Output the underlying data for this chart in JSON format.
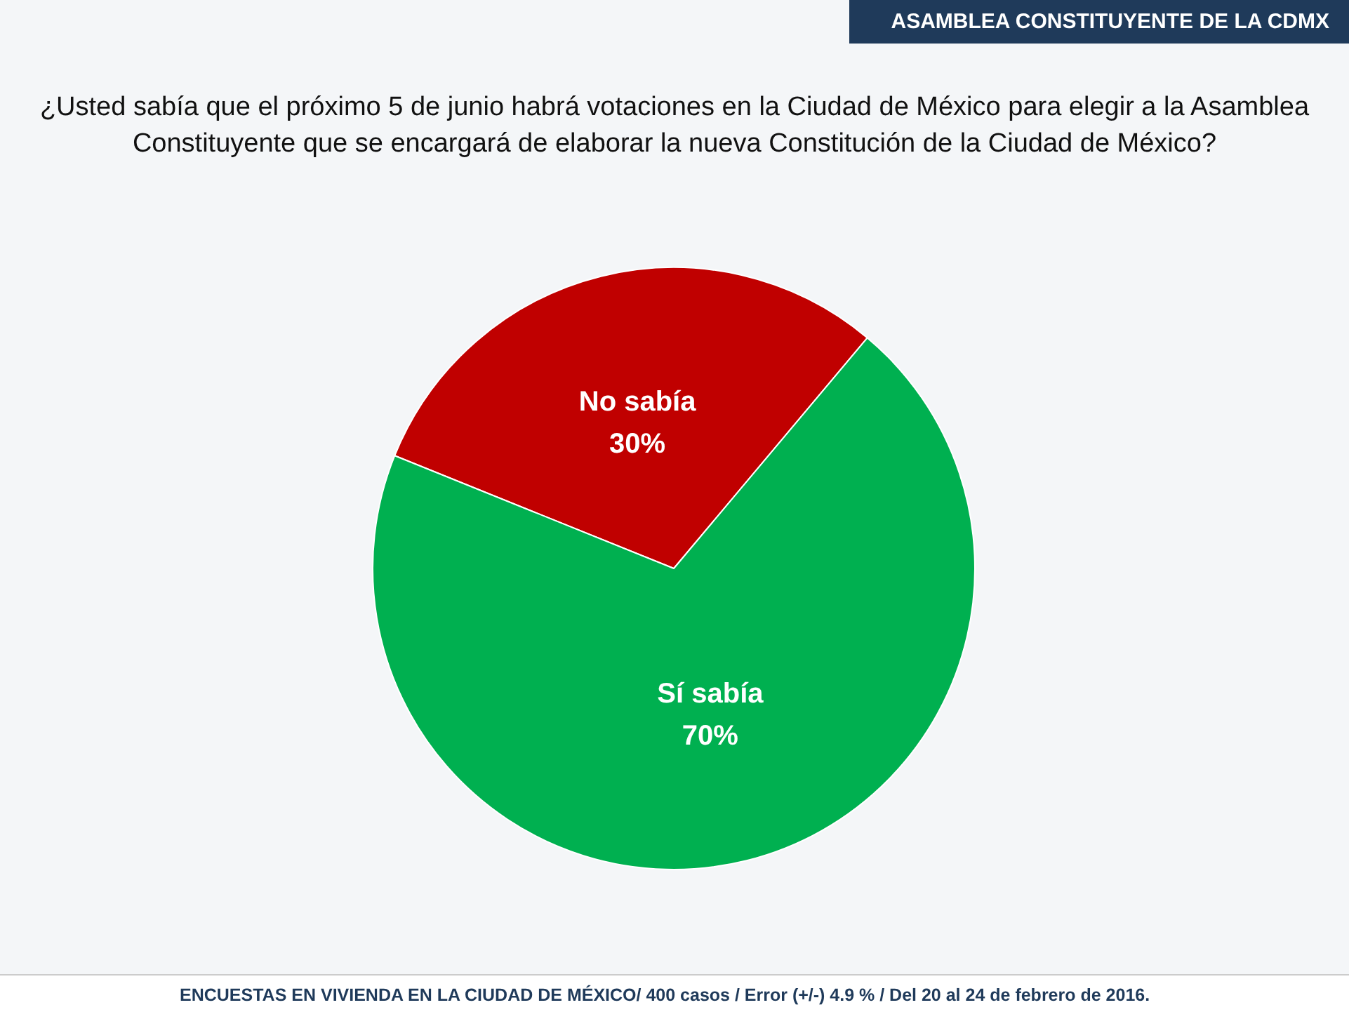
{
  "chart_data": {
    "type": "pie",
    "subtitle": "ASAMBLEA CONSTITUYENTE DE LA CDMX",
    "title": "¿Usted sabía que el próximo 5 de junio habrá votaciones en la Ciudad de México para elegir a la Asamblea Constituyente que se encargará de elaborar la nueva Constitución de la Ciudad de México?",
    "categories": [
      "No sabía",
      "Sí sabía"
    ],
    "values": [
      30,
      70
    ],
    "colors": [
      "#c00000",
      "#00b050"
    ],
    "value_labels": [
      "30%",
      "70%"
    ],
    "legend": false,
    "annotations": [
      "ENCUESTAS EN VIVIENDA EN LA CIUDAD DE MÉXICO/ 400 casos / Error (+/-) 4.9 % / Del 20 al 24 de febrero de 2016."
    ]
  }
}
